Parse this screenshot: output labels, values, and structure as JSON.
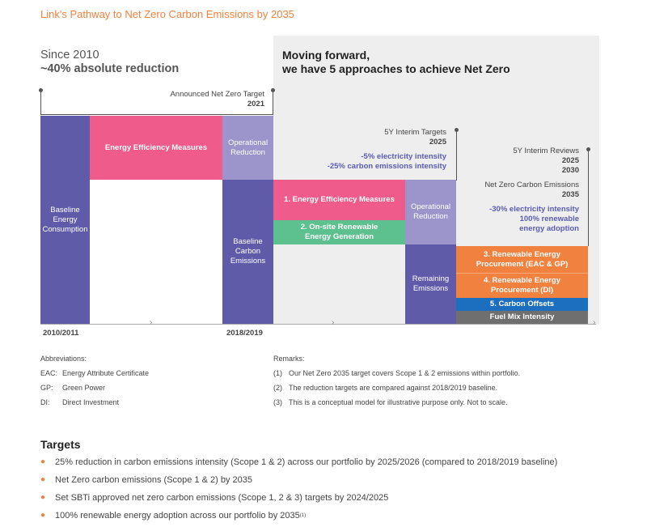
{
  "title": "Link's Pathway to Net Zero Carbon Emissions by 2035",
  "since": {
    "line1": "Since 2010",
    "line2": "~40% absolute reduction"
  },
  "moving": {
    "line1": "Moving forward,",
    "line2": "we have 5 approaches to achieve Net Zero"
  },
  "announced": {
    "label": "Announced Net Zero Target",
    "year": "2021"
  },
  "interim_targets": {
    "label": "5Y Interim Targets",
    "year": "2025",
    "item1": "-5% electricity intensity",
    "item2": "-25% carbon emissions intensity"
  },
  "interim_reviews": {
    "label": "5Y Interim Reviews",
    "year1": "2025",
    "year2": "2030",
    "nz_label": "Net Zero Carbon Emissions",
    "nz_year": "2035",
    "item1": "-30% electricity intensity",
    "item2": "100% renewable",
    "item3": "energy adoption"
  },
  "blocks": {
    "baseline_energy": "Baseline Energy Consumption",
    "energy_eff": "Energy Efficiency Measures",
    "op_reduction_1": "Operational Reduction",
    "baseline_carbon": "Baseline Carbon Emissions",
    "approach1": "1. Energy Efficiency Measures",
    "approach2": "2. On-site Renewable Energy Generation",
    "op_reduction_2": "Operational Reduction",
    "remaining": "Remaining Emissions",
    "approach3": "3. Renewable Energy Procurement (EAC & GP)",
    "approach4": "4. Renewable Energy Procurement (DI)",
    "approach5": "5. Carbon Offsets",
    "fuel_mix": "Fuel Mix Intensity"
  },
  "axis": {
    "left": "2010/2011",
    "right": "2018/2019"
  },
  "abbreviations": {
    "heading": "Abbreviations:",
    "items": [
      {
        "key": "EAC:",
        "value": "Energy Attribute Certificate"
      },
      {
        "key": "GP:",
        "value": "Green Power"
      },
      {
        "key": "DI:",
        "value": "Direct Investment"
      }
    ]
  },
  "remarks": {
    "heading": "Remarks:",
    "items": [
      {
        "key": "(1)",
        "value": "Our Net Zero 2035 target covers Scope 1 & 2 emissions within portfolio."
      },
      {
        "key": "(2)",
        "value": "The reduction targets are compared against 2018/2019 baseline."
      },
      {
        "key": "(3)",
        "value": "This is a conceptual model for illustrative purpose only. Not to scale."
      }
    ]
  },
  "targets": {
    "heading": "Targets",
    "items": [
      "25% reduction in carbon emissions intensity (Scope 1 & 2) across our portfolio by 2025/2026 (compared to 2018/2019 baseline)",
      "Net Zero carbon emissions (Scope 1 & 2) by 2035",
      "Set SBTi approved net zero carbon emissions (Scope 1, 2 & 3) targets by 2024/2025",
      "100% renewable energy adoption across our portfolio by 2035"
    ],
    "last_sup": "(1)"
  },
  "colors": {
    "purple_dark": "#5f5ba8",
    "purple_light": "#9b95cc",
    "pink": "#ef5b8a",
    "green": "#5cc08f",
    "orange": "#f0813f",
    "blue": "#1c6fbf",
    "gray": "#6f6f6f"
  }
}
